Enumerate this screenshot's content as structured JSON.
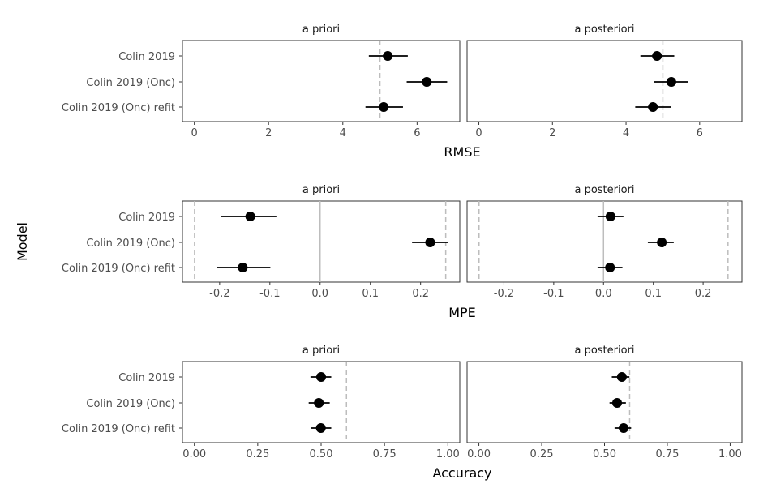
{
  "chart_data": {
    "type": "forest",
    "ylabel": "Model",
    "categories": [
      "Colin 2019",
      "Colin 2019 (Onc)",
      "Colin 2019 (Onc) refit"
    ],
    "facets": [
      "a priori",
      "a posteriori"
    ],
    "colors": {
      "point": "#000000",
      "reference_line": "#bdbdbd",
      "panel_border": "#333333"
    },
    "grid": false,
    "rows": [
      {
        "xlabel": "RMSE",
        "xlim": [
          -0.32,
          7.15
        ],
        "ticks": [
          0,
          2,
          4,
          6
        ],
        "tick_labels": [
          "0",
          "2",
          "4",
          "6"
        ],
        "ref_dashed": [
          5
        ],
        "ref_solid": [],
        "panels": [
          {
            "facet": "a priori",
            "estimate": [
              5.21,
              6.26,
              5.1
            ],
            "lower": [
              4.7,
              5.72,
              4.61
            ],
            "upper": [
              5.75,
              6.81,
              5.62
            ]
          },
          {
            "facet": "a posteriori",
            "estimate": [
              4.84,
              5.23,
              4.73
            ],
            "lower": [
              4.39,
              4.76,
              4.25
            ],
            "upper": [
              5.31,
              5.69,
              5.22
            ]
          }
        ]
      },
      {
        "xlabel": "MPE",
        "xlim": [
          -0.274,
          0.278
        ],
        "ticks": [
          -0.2,
          -0.1,
          0,
          0.1,
          0.2
        ],
        "tick_labels": [
          "-0.2",
          "-0.1",
          "0.0",
          "0.1",
          "0.2"
        ],
        "ref_dashed": [
          -0.25,
          0.25
        ],
        "ref_solid": [
          0
        ],
        "panels": [
          {
            "facet": "a priori",
            "estimate": [
              -0.139,
              0.219,
              -0.154
            ],
            "lower": [
              -0.197,
              0.183,
              -0.205
            ],
            "upper": [
              -0.087,
              0.254,
              -0.099
            ]
          },
          {
            "facet": "a posteriori",
            "estimate": [
              0.014,
              0.117,
              0.013
            ],
            "lower": [
              -0.012,
              0.089,
              -0.012
            ],
            "upper": [
              0.04,
              0.141,
              0.038
            ]
          }
        ]
      },
      {
        "xlabel": "Accuracy",
        "xlim": [
          -0.047,
          1.047
        ],
        "ticks": [
          0,
          0.25,
          0.5,
          0.75,
          1
        ],
        "tick_labels": [
          "0.00",
          "0.25",
          "0.50",
          "0.75",
          "1.00"
        ],
        "ref_dashed": [
          0.6
        ],
        "ref_solid": [],
        "panels": [
          {
            "facet": "a priori",
            "estimate": [
              0.5,
              0.491,
              0.499
            ],
            "lower": [
              0.458,
              0.451,
              0.46
            ],
            "upper": [
              0.54,
              0.534,
              0.54
            ]
          },
          {
            "facet": "a posteriori",
            "estimate": [
              0.569,
              0.55,
              0.576
            ],
            "lower": [
              0.529,
              0.52,
              0.54
            ],
            "upper": [
              0.599,
              0.585,
              0.606
            ]
          }
        ]
      }
    ]
  }
}
